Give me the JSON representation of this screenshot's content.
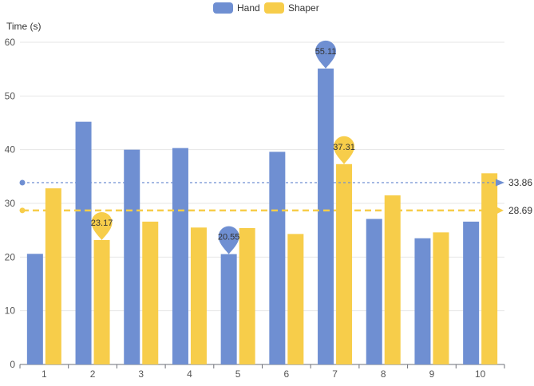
{
  "chart_data": {
    "type": "bar",
    "ylabel": "Time (s)",
    "ylim": [
      0,
      60
    ],
    "yticks": [
      0,
      10,
      20,
      30,
      40,
      50,
      60
    ],
    "grid": true,
    "legend_position": "top-center",
    "categories": [
      "1",
      "2",
      "3",
      "4",
      "5",
      "6",
      "7",
      "8",
      "9",
      "10"
    ],
    "series": [
      {
        "name": "Hand",
        "color": "#6f8fd2",
        "values": [
          20.6,
          45.2,
          40.0,
          40.3,
          20.55,
          39.6,
          55.11,
          27.1,
          23.5,
          26.6
        ],
        "max": {
          "label": "55.11",
          "index": 6
        },
        "min": {
          "label": "20.55",
          "index": 4
        },
        "average": {
          "value": 33.86,
          "label": "33.86"
        }
      },
      {
        "name": "Shaper",
        "color": "#f7cd4a",
        "values": [
          32.8,
          23.17,
          26.6,
          25.5,
          25.4,
          24.3,
          37.31,
          31.5,
          24.6,
          35.6
        ],
        "max": {
          "label": "37.31",
          "index": 6
        },
        "min": {
          "label": "23.17",
          "index": 1
        },
        "average": {
          "value": 28.69,
          "label": "28.69"
        }
      }
    ]
  }
}
